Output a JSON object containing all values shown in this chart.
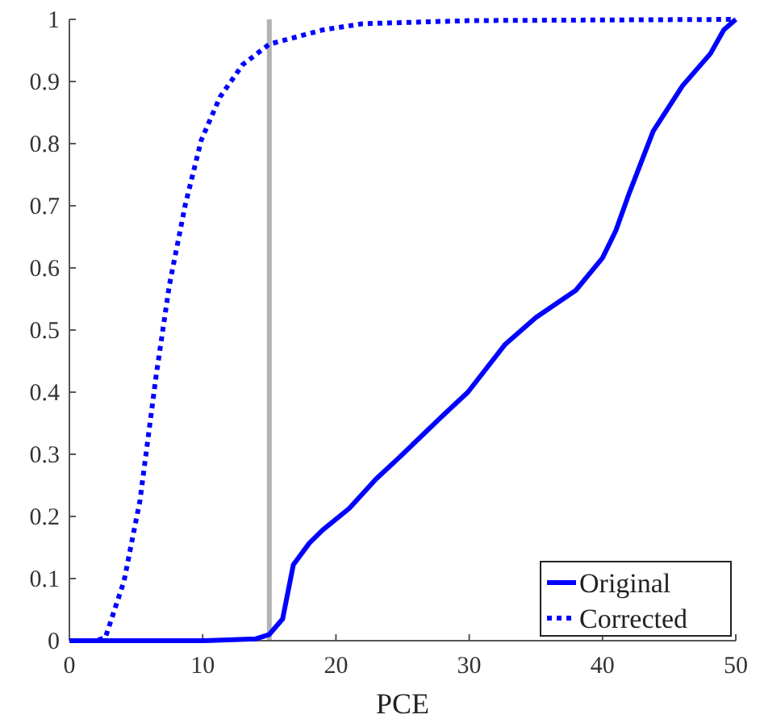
{
  "chart_data": {
    "type": "line",
    "xlabel": "PCE",
    "xlim": [
      0,
      50
    ],
    "ylim": [
      0,
      1
    ],
    "xticks": [
      0,
      10,
      20,
      30,
      40,
      50
    ],
    "yticks": [
      0,
      0.1,
      0.2,
      0.3,
      0.4,
      0.5,
      0.6,
      0.7,
      0.8,
      0.9,
      1
    ],
    "grid": false,
    "legend": "bottom right",
    "marker": "none",
    "ref_lines": [
      {
        "axis": "x",
        "value": 15,
        "color": "#b3b3b3"
      }
    ],
    "series": [
      {
        "name": "Original",
        "color": "#0000ff",
        "line_style": "solid",
        "x": [
          0,
          5,
          10,
          14,
          15,
          16,
          16.8,
          18,
          19,
          21,
          23,
          24.8,
          27.9,
          29.9,
          32.7,
          35,
          38,
          40,
          41,
          42,
          43.8,
          46,
          48.1,
          49.1,
          50
        ],
        "values": [
          0,
          0,
          0,
          0.003,
          0.01,
          0.035,
          0.122,
          0.157,
          0.178,
          0.213,
          0.26,
          0.296,
          0.36,
          0.4,
          0.477,
          0.52,
          0.564,
          0.616,
          0.66,
          0.72,
          0.82,
          0.893,
          0.945,
          0.983,
          1
        ]
      },
      {
        "name": "Corrected",
        "color": "#0000ff",
        "line_style": "dotted",
        "x": [
          0,
          2,
          2.7,
          4.1,
          5.3,
          6.5,
          7.5,
          8.7,
          9.9,
          11.3,
          13,
          15,
          19,
          22,
          30,
          40,
          50
        ],
        "values": [
          0,
          0,
          0.005,
          0.096,
          0.226,
          0.425,
          0.572,
          0.702,
          0.806,
          0.875,
          0.927,
          0.96,
          0.983,
          0.993,
          0.998,
          0.999,
          1
        ]
      }
    ]
  }
}
